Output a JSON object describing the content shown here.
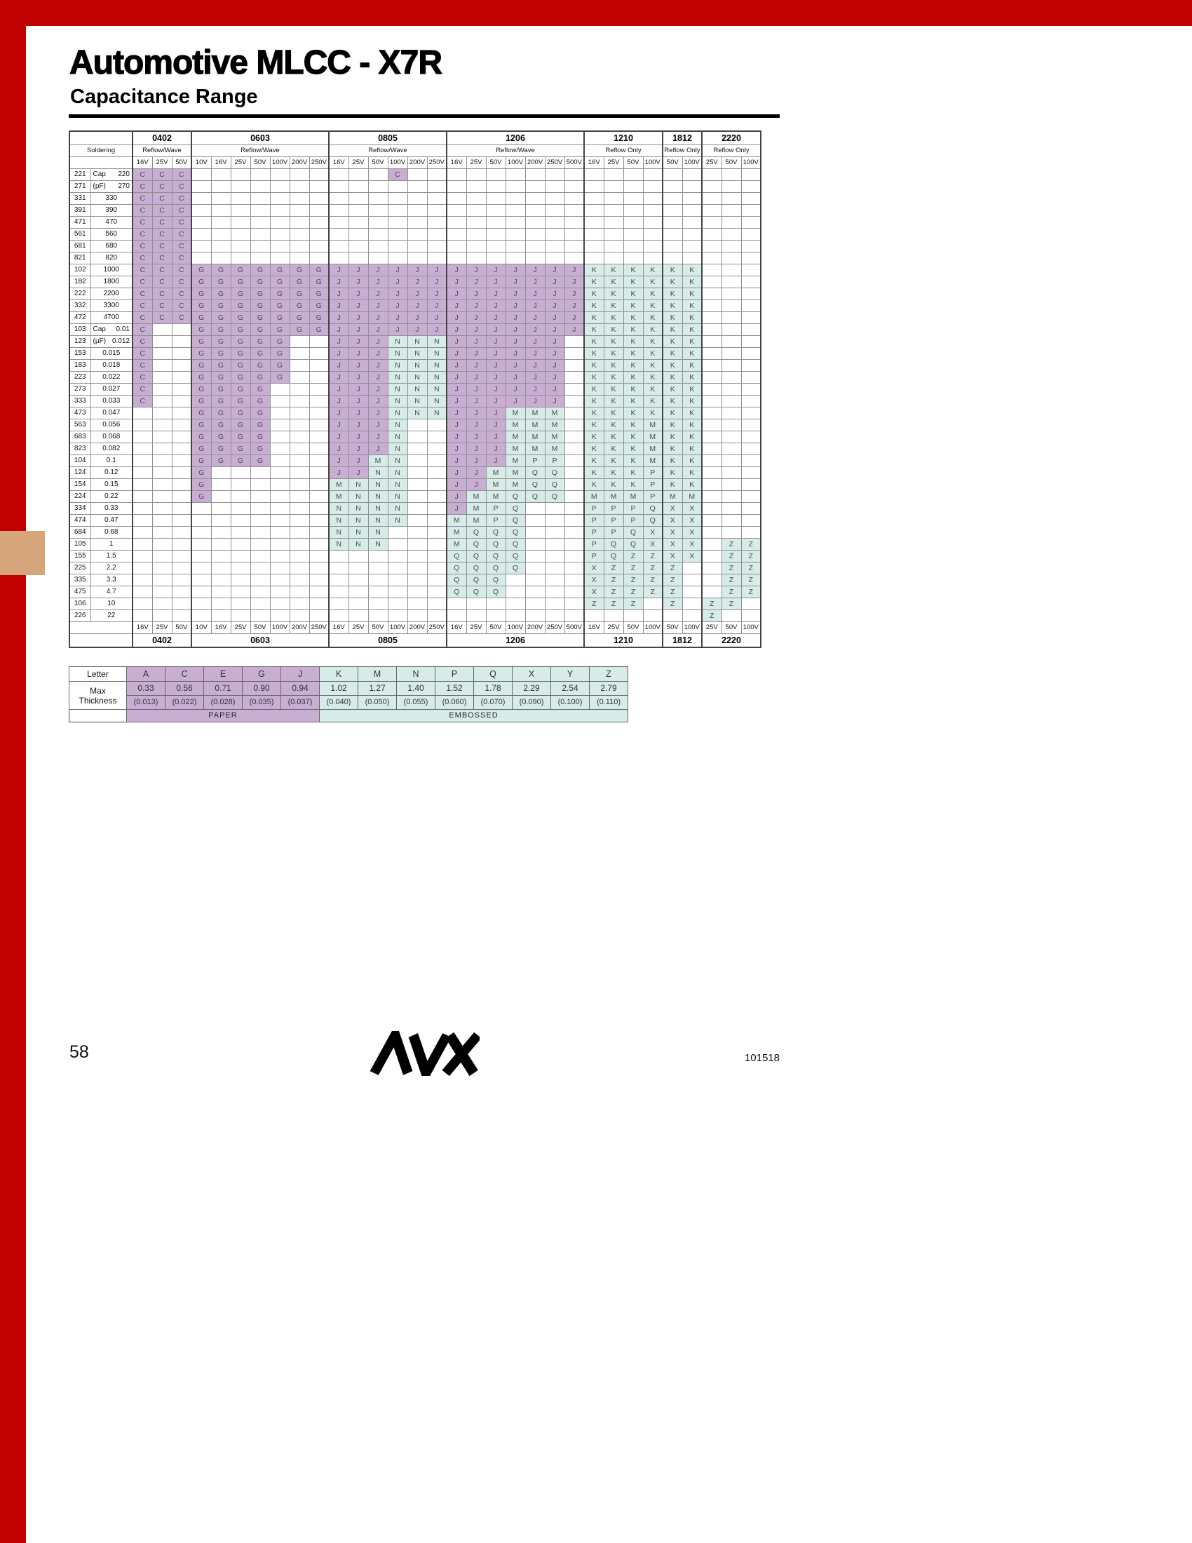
{
  "page": {
    "title": "Automotive MLCC - X7R",
    "subtitle": "Capacitance Range",
    "page_number": "58",
    "doc_number": "101518",
    "logo_text": "AVX",
    "registered_mark": "®"
  },
  "colors": {
    "paper": "#c9aed4",
    "embossed": "#d7ebe8",
    "border_red": "#c10000",
    "tab_tan": "#d5a67c",
    "grid_line": "#909090"
  },
  "table": {
    "soldering_label": "Soldering",
    "paper_letters": "ACEGJ",
    "groups": [
      {
        "size": "0402",
        "soldering": "Reflow/Wave",
        "voltages": [
          "16V",
          "25V",
          "50V"
        ]
      },
      {
        "size": "0603",
        "soldering": "Reflow/Wave",
        "voltages": [
          "10V",
          "16V",
          "25V",
          "50V",
          "100V",
          "200V",
          "250V"
        ]
      },
      {
        "size": "0805",
        "soldering": "Reflow/Wave",
        "voltages": [
          "16V",
          "25V",
          "50V",
          "100V",
          "200V",
          "250V"
        ]
      },
      {
        "size": "1206",
        "soldering": "Reflow/Wave",
        "voltages": [
          "16V",
          "25V",
          "50V",
          "100V",
          "200V",
          "250V",
          "500V"
        ]
      },
      {
        "size": "1210",
        "soldering": "Reflow Only",
        "voltages": [
          "16V",
          "25V",
          "50V",
          "100V"
        ]
      },
      {
        "size": "1812",
        "soldering": "Reflow Only",
        "voltages": [
          "50V",
          "100V"
        ]
      },
      {
        "size": "2220",
        "soldering": "Reflow Only",
        "voltages": [
          "25V",
          "50V",
          "100V"
        ]
      }
    ],
    "rows": [
      {
        "code": "221",
        "prefix": "Cap",
        "value": "220",
        "cells": "CCC..........C.................."
      },
      {
        "code": "271",
        "prefix": "(pF)",
        "value": "270",
        "cells": "CCC............................."
      },
      {
        "code": "331",
        "prefix": "",
        "value": "330",
        "cells": "CCC............................."
      },
      {
        "code": "391",
        "prefix": "",
        "value": "390",
        "cells": "CCC............................."
      },
      {
        "code": "471",
        "prefix": "",
        "value": "470",
        "cells": "CCC............................."
      },
      {
        "code": "561",
        "prefix": "",
        "value": "560",
        "cells": "CCC............................."
      },
      {
        "code": "681",
        "prefix": "",
        "value": "680",
        "cells": "CCC............................."
      },
      {
        "code": "821",
        "prefix": "",
        "value": "820",
        "cells": "CCC............................."
      },
      {
        "code": "102",
        "prefix": "",
        "value": "1000",
        "cells": "CCCGGGGGGGJJJJJJJJJJJJJKKKKKK..."
      },
      {
        "code": "182",
        "prefix": "",
        "value": "1800",
        "cells": "CCCGGGGGGGJJJJJJJJJJJJJKKKKKK..."
      },
      {
        "code": "222",
        "prefix": "",
        "value": "2200",
        "cells": "CCCGGGGGGGJJJJJJJJJJJJJKKKKKK..."
      },
      {
        "code": "332",
        "prefix": "",
        "value": "3300",
        "cells": "CCCGGGGGGGJJJJJJJJJJJJJKKKKKK..."
      },
      {
        "code": "472",
        "prefix": "",
        "value": "4700",
        "cells": "CCCGGGGGGGJJJJJJJJJJJJJKKKKKK..."
      },
      {
        "code": "103",
        "prefix": "Cap",
        "value": "0.01",
        "cells": "C..GGGGGGGJJJJJJJJJJJJJKKKKKK..."
      },
      {
        "code": "123",
        "prefix": "(µF)",
        "value": "0.012",
        "cells": "C..GGGGG..JJJNNNJJJJJJ.KKKKKK..."
      },
      {
        "code": "153",
        "prefix": "",
        "value": "0.015",
        "cells": "C..GGGGG..JJJNNNJJJJJJ.KKKKKK..."
      },
      {
        "code": "183",
        "prefix": "",
        "value": "0.018",
        "cells": "C..GGGGG..JJJNNNJJJJJJ.KKKKKK..."
      },
      {
        "code": "223",
        "prefix": "",
        "value": "0.022",
        "cells": "C..GGGGG..JJJNNNJJJJJJ.KKKKKK..."
      },
      {
        "code": "273",
        "prefix": "",
        "value": "0.027",
        "cells": "C..GGGG...JJJNNNJJJJJJ.KKKKKK..."
      },
      {
        "code": "333",
        "prefix": "",
        "value": "0.033",
        "cells": "C..GGGG...JJJNNNJJJJJJ.KKKKKK..."
      },
      {
        "code": "473",
        "prefix": "",
        "value": "0.047",
        "cells": "...GGGG...JJJNNNJJJMMM.KKKKKK..."
      },
      {
        "code": "563",
        "prefix": "",
        "value": "0.056",
        "cells": "...GGGG...JJJN..JJJMMM.KKKMKK..."
      },
      {
        "code": "683",
        "prefix": "",
        "value": "0.068",
        "cells": "...GGGG...JJJN..JJJMMM.KKKMKK..."
      },
      {
        "code": "823",
        "prefix": "",
        "value": "0.082",
        "cells": "...GGGG...JJJN..JJJMMM.KKKMKK..."
      },
      {
        "code": "104",
        "prefix": "",
        "value": "0.1",
        "cells": "...GGGG...JJMN..JJJMPP.KKKMKK..."
      },
      {
        "code": "124",
        "prefix": "",
        "value": "0.12",
        "cells": "...G......JJNN..JJMMQQ.KKKPKK..."
      },
      {
        "code": "154",
        "prefix": "",
        "value": "0.15",
        "cells": "...G......MNNN..JJMMQQ.KKKPKK..."
      },
      {
        "code": "224",
        "prefix": "",
        "value": "0.22",
        "cells": "...G......MNNN..JMMQQQ.MMMPMM..."
      },
      {
        "code": "334",
        "prefix": "",
        "value": "0.33",
        "cells": "..........NNNN..JMPQ...PPPQXX..."
      },
      {
        "code": "474",
        "prefix": "",
        "value": "0.47",
        "cells": "..........NNNN..MMPQ...PPPQXX..."
      },
      {
        "code": "684",
        "prefix": "",
        "value": "0.68",
        "cells": "..........NNN...MQQQ...PPQXXX..."
      },
      {
        "code": "105",
        "prefix": "",
        "value": "1",
        "cells": "..........NNN...MQQQ...PQQXXX.ZZ"
      },
      {
        "code": "155",
        "prefix": "",
        "value": "1.5",
        "cells": "................QQQQ...PQZZXX.ZZ"
      },
      {
        "code": "225",
        "prefix": "",
        "value": "2.2",
        "cells": "................QQQQ...XZZZZ..ZZ"
      },
      {
        "code": "335",
        "prefix": "",
        "value": "3.3",
        "cells": "................QQQ....XZZZZ..ZZ"
      },
      {
        "code": "475",
        "prefix": "",
        "value": "4.7",
        "cells": "................QQQ....XZZZZ..ZZ"
      },
      {
        "code": "106",
        "prefix": "",
        "value": "10",
        "cells": ".......................ZZZ.Z.ZZ."
      },
      {
        "code": "226",
        "prefix": "",
        "value": "22",
        "cells": ".............................Z.."
      }
    ]
  },
  "legend": {
    "letter_label": "Letter",
    "max_label": "Max",
    "thickness_label": "Thickness",
    "letters": [
      "A",
      "C",
      "E",
      "G",
      "J",
      "K",
      "M",
      "N",
      "P",
      "Q",
      "X",
      "Y",
      "Z"
    ],
    "mm": [
      "0.33",
      "0.56",
      "0.71",
      "0.90",
      "0.94",
      "1.02",
      "1.27",
      "1.40",
      "1.52",
      "1.78",
      "2.29",
      "2.54",
      "2.79"
    ],
    "inches": [
      "(0.013)",
      "(0.022)",
      "(0.028)",
      "(0.035)",
      "(0.037)",
      "(0.040)",
      "(0.050)",
      "(0.055)",
      "(0.060)",
      "(0.070)",
      "(0.090)",
      "(0.100)",
      "(0.110)"
    ],
    "paper_count": 5,
    "paper_label": "PAPER",
    "embossed_label": "EMBOSSED"
  }
}
